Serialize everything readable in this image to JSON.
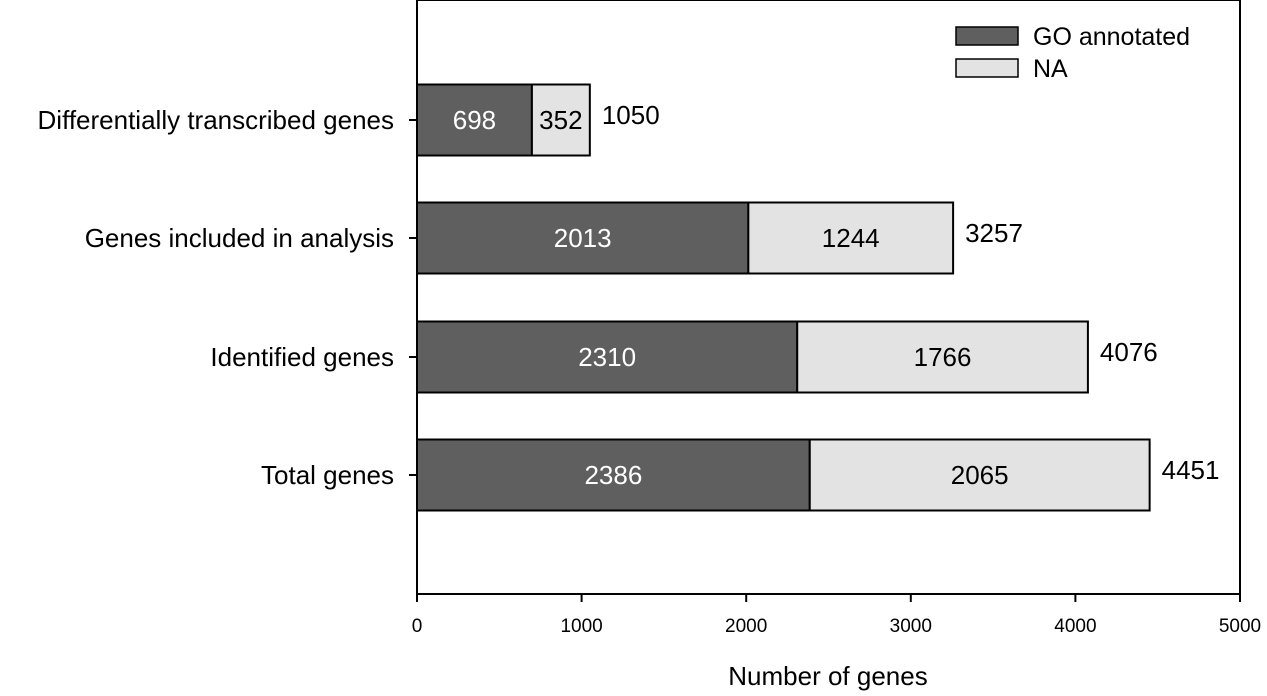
{
  "chart_data": {
    "type": "bar",
    "orientation": "horizontal",
    "stacked": true,
    "categories": [
      "Differentially transcribed genes",
      "Genes included in analysis",
      "Identified genes",
      "Total genes"
    ],
    "series": [
      {
        "name": "GO annotated",
        "values": [
          698,
          2013,
          2310,
          2386
        ],
        "color": "#5f5f5f",
        "label_color": "#ffffff"
      },
      {
        "name": "NA",
        "values": [
          352,
          1244,
          1766,
          2065
        ],
        "color": "#e3e3e3",
        "label_color": "#000000"
      }
    ],
    "totals": [
      1050,
      3257,
      4076,
      4451
    ],
    "xlabel": "Number of genes",
    "ylabel": "",
    "xlim": [
      0,
      5000
    ],
    "xticks": [
      0,
      1000,
      2000,
      3000,
      4000,
      5000
    ],
    "grid": false,
    "legend_position": "top-right"
  }
}
